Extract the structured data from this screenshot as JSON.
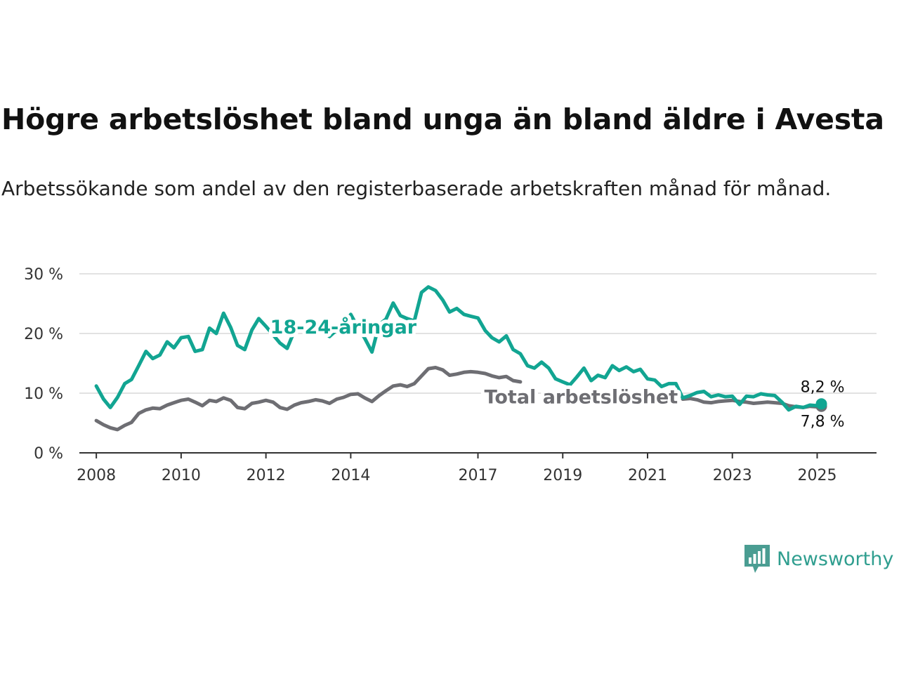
{
  "title": "Högre arbetslöshet bland unga än bland äldre i Avesta",
  "subtitle": "Arbetssökande som andel av den registerbaserade arbetskraften månad för månad.",
  "brand": {
    "name": "Newsworthy",
    "icon": "chart-bubble-icon"
  },
  "colors": {
    "youth": "#12a592",
    "total": "#6e6e73",
    "grid": "#d9d9d9",
    "axis": "#333333"
  },
  "chart_data": {
    "type": "line",
    "title": "Högre arbetslöshet bland unga än bland äldre i Avesta",
    "subtitle": "Arbetssökande som andel av den registerbaserade arbetskraften månad för månad.",
    "xlabel": "",
    "ylabel": "",
    "x_range": [
      2007.6,
      2026.4
    ],
    "x_ticks": [
      {
        "value": 2008,
        "label": "2008"
      },
      {
        "value": 2010,
        "label": "2010"
      },
      {
        "value": 2012,
        "label": "2012"
      },
      {
        "value": 2014,
        "label": "2014"
      },
      {
        "value": 2017,
        "label": "2017"
      },
      {
        "value": 2019,
        "label": "2019"
      },
      {
        "value": 2021,
        "label": "2021"
      },
      {
        "value": 2023,
        "label": "2023"
      },
      {
        "value": 2025,
        "label": "2025"
      }
    ],
    "ylim": [
      0,
      30
    ],
    "y_ticks": [
      {
        "value": 0,
        "label": "0 %"
      },
      {
        "value": 10,
        "label": "10 %"
      },
      {
        "value": 20,
        "label": "20 %"
      },
      {
        "value": 30,
        "label": "30 %"
      }
    ],
    "grid": true,
    "series": [
      {
        "name": "18-24-åringar",
        "color": "#12a592",
        "label_position": [
          2012.1,
          21.2
        ],
        "points": [
          [
            2008.0,
            11.2
          ],
          [
            2008.17,
            9.0
          ],
          [
            2008.33,
            7.6
          ],
          [
            2008.5,
            9.3
          ],
          [
            2008.67,
            11.6
          ],
          [
            2008.83,
            12.3
          ],
          [
            2009.0,
            14.6
          ],
          [
            2009.17,
            17.0
          ],
          [
            2009.33,
            15.8
          ],
          [
            2009.5,
            16.4
          ],
          [
            2009.67,
            18.6
          ],
          [
            2009.83,
            17.6
          ],
          [
            2010.0,
            19.3
          ],
          [
            2010.17,
            19.5
          ],
          [
            2010.33,
            17.0
          ],
          [
            2010.5,
            17.3
          ],
          [
            2010.67,
            20.9
          ],
          [
            2010.83,
            20.0
          ],
          [
            2011.0,
            23.4
          ],
          [
            2011.17,
            21.0
          ],
          [
            2011.33,
            18.0
          ],
          [
            2011.5,
            17.3
          ],
          [
            2011.67,
            20.6
          ],
          [
            2011.83,
            22.5
          ],
          [
            2012.0,
            21.2
          ],
          [
            2012.33,
            18.4
          ],
          [
            2012.5,
            17.5
          ],
          [
            2012.67,
            20.4
          ],
          [
            2012.83,
            21.0
          ],
          [
            2013.0,
            21.4
          ],
          [
            2013.33,
            20.5
          ],
          [
            2013.5,
            19.5
          ],
          [
            2013.67,
            20.6
          ],
          [
            2013.83,
            21.3
          ],
          [
            2014.0,
            23.2
          ],
          [
            2014.17,
            21.0
          ],
          [
            2014.33,
            19.2
          ],
          [
            2014.5,
            16.9
          ],
          [
            2014.67,
            21.5
          ],
          [
            2014.83,
            22.4
          ],
          [
            2015.0,
            25.1
          ],
          [
            2015.17,
            23.0
          ],
          [
            2015.33,
            22.5
          ],
          [
            2015.5,
            22.1
          ],
          [
            2015.67,
            26.9
          ],
          [
            2015.83,
            27.8
          ],
          [
            2016.0,
            27.2
          ],
          [
            2016.17,
            25.6
          ],
          [
            2016.33,
            23.6
          ],
          [
            2016.5,
            24.2
          ],
          [
            2016.67,
            23.2
          ],
          [
            2016.83,
            22.9
          ],
          [
            2017.0,
            22.6
          ],
          [
            2017.17,
            20.5
          ],
          [
            2017.33,
            19.3
          ],
          [
            2017.5,
            18.6
          ],
          [
            2017.67,
            19.6
          ],
          [
            2017.83,
            17.3
          ],
          [
            2018.0,
            16.6
          ],
          [
            2018.17,
            14.6
          ],
          [
            2018.33,
            14.2
          ],
          [
            2018.5,
            15.2
          ],
          [
            2018.67,
            14.2
          ],
          [
            2018.83,
            12.4
          ],
          [
            2019.0,
            11.9
          ],
          [
            2019.17,
            11.4
          ],
          [
            2019.33,
            12.7
          ],
          [
            2019.5,
            14.2
          ],
          [
            2019.67,
            12.1
          ],
          [
            2019.83,
            13.0
          ],
          [
            2020.0,
            12.6
          ],
          [
            2020.17,
            14.6
          ],
          [
            2020.33,
            13.8
          ],
          [
            2020.5,
            14.4
          ],
          [
            2020.67,
            13.6
          ],
          [
            2020.83,
            14.0
          ],
          [
            2021.0,
            12.4
          ],
          [
            2021.17,
            12.2
          ],
          [
            2021.33,
            11.1
          ],
          [
            2021.5,
            11.6
          ],
          [
            2021.67,
            11.6
          ],
          [
            2021.83,
            9.2
          ],
          [
            2022.0,
            9.6
          ],
          [
            2022.17,
            10.1
          ],
          [
            2022.33,
            10.3
          ],
          [
            2022.5,
            9.4
          ],
          [
            2022.67,
            9.7
          ],
          [
            2022.83,
            9.4
          ],
          [
            2023.0,
            9.5
          ],
          [
            2023.17,
            8.1
          ],
          [
            2023.33,
            9.5
          ],
          [
            2023.5,
            9.4
          ],
          [
            2023.67,
            9.9
          ],
          [
            2023.83,
            9.7
          ],
          [
            2024.0,
            9.6
          ],
          [
            2024.17,
            8.5
          ],
          [
            2024.33,
            7.2
          ],
          [
            2024.5,
            7.8
          ],
          [
            2024.67,
            7.6
          ],
          [
            2024.83,
            8.0
          ],
          [
            2025.0,
            7.9
          ],
          [
            2025.1,
            8.2
          ]
        ]
      },
      {
        "name": "Total arbetslöshet",
        "color": "#6e6e73",
        "label_position": [
          2017.15,
          9.5
        ],
        "points": [
          [
            2008.0,
            5.4
          ],
          [
            2008.17,
            4.7
          ],
          [
            2008.33,
            4.2
          ],
          [
            2008.5,
            3.9
          ],
          [
            2008.67,
            4.6
          ],
          [
            2008.83,
            5.1
          ],
          [
            2009.0,
            6.6
          ],
          [
            2009.17,
            7.2
          ],
          [
            2009.33,
            7.5
          ],
          [
            2009.5,
            7.4
          ],
          [
            2009.67,
            8.0
          ],
          [
            2009.83,
            8.4
          ],
          [
            2010.0,
            8.8
          ],
          [
            2010.17,
            9.0
          ],
          [
            2010.33,
            8.5
          ],
          [
            2010.5,
            7.9
          ],
          [
            2010.67,
            8.8
          ],
          [
            2010.83,
            8.6
          ],
          [
            2011.0,
            9.2
          ],
          [
            2011.17,
            8.8
          ],
          [
            2011.33,
            7.6
          ],
          [
            2011.5,
            7.4
          ],
          [
            2011.67,
            8.3
          ],
          [
            2011.83,
            8.5
          ],
          [
            2012.0,
            8.8
          ],
          [
            2012.17,
            8.5
          ],
          [
            2012.33,
            7.6
          ],
          [
            2012.5,
            7.3
          ],
          [
            2012.67,
            8.0
          ],
          [
            2012.83,
            8.4
          ],
          [
            2013.0,
            8.6
          ],
          [
            2013.17,
            8.9
          ],
          [
            2013.33,
            8.7
          ],
          [
            2013.5,
            8.3
          ],
          [
            2013.67,
            9.0
          ],
          [
            2013.83,
            9.3
          ],
          [
            2014.0,
            9.8
          ],
          [
            2014.17,
            9.9
          ],
          [
            2014.33,
            9.2
          ],
          [
            2014.5,
            8.6
          ],
          [
            2014.67,
            9.6
          ],
          [
            2014.83,
            10.4
          ],
          [
            2015.0,
            11.2
          ],
          [
            2015.17,
            11.4
          ],
          [
            2015.33,
            11.1
          ],
          [
            2015.5,
            11.6
          ],
          [
            2015.67,
            12.9
          ],
          [
            2015.83,
            14.1
          ],
          [
            2016.0,
            14.3
          ],
          [
            2016.17,
            13.9
          ],
          [
            2016.33,
            13.0
          ],
          [
            2016.5,
            13.2
          ],
          [
            2016.67,
            13.5
          ],
          [
            2016.83,
            13.6
          ],
          [
            2017.0,
            13.5
          ],
          [
            2017.17,
            13.3
          ],
          [
            2017.33,
            12.9
          ],
          [
            2017.5,
            12.6
          ],
          [
            2017.67,
            12.8
          ],
          [
            2017.83,
            12.1
          ],
          [
            2018.0,
            11.9
          ],
          [
            2021.83,
            9.0
          ],
          [
            2022.0,
            9.1
          ],
          [
            2022.17,
            8.9
          ],
          [
            2022.33,
            8.5
          ],
          [
            2022.5,
            8.4
          ],
          [
            2022.67,
            8.6
          ],
          [
            2022.83,
            8.7
          ],
          [
            2023.0,
            8.8
          ],
          [
            2023.17,
            8.6
          ],
          [
            2023.33,
            8.5
          ],
          [
            2023.5,
            8.3
          ],
          [
            2023.67,
            8.4
          ],
          [
            2023.83,
            8.5
          ],
          [
            2024.0,
            8.4
          ],
          [
            2024.17,
            8.3
          ],
          [
            2024.33,
            7.9
          ],
          [
            2024.5,
            7.7
          ],
          [
            2024.67,
            7.6
          ],
          [
            2024.83,
            7.8
          ],
          [
            2025.0,
            7.7
          ],
          [
            2025.1,
            7.8
          ]
        ]
      }
    ],
    "end_labels": [
      {
        "series": "18-24-åringar",
        "text": "8,2 %",
        "value": 8.2
      },
      {
        "series": "Total arbetslöshet",
        "text": "7,8 %",
        "value": 7.8
      }
    ]
  }
}
